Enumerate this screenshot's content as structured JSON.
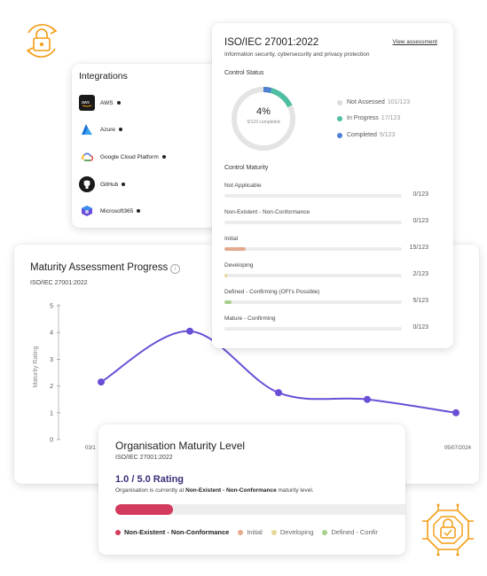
{
  "integrations": {
    "title": "Integrations",
    "items": [
      {
        "label": "AWS",
        "icon": "aws-logo-icon",
        "bg": "#1a1a1a"
      },
      {
        "label": "Azure",
        "icon": "azure-logo-icon",
        "bg": "#ffffff"
      },
      {
        "label": "Google Cloud Platform",
        "icon": "google-cloud-logo-icon",
        "bg": "#ffffff"
      },
      {
        "label": "GitHub",
        "icon": "github-logo-icon",
        "bg": "#1a1a1a"
      },
      {
        "label": "Microsoft365",
        "icon": "microsoft365-logo-icon",
        "bg": "#ffffff"
      }
    ]
  },
  "iso": {
    "title": "ISO/IEC 27001:2022",
    "link": "View assessment",
    "subtitle": "Information security, cybersecurity and privacy protection",
    "control_status": {
      "heading": "Control Status",
      "percent": "4%",
      "completed_text": "5/123 completed",
      "legend": [
        {
          "label": "Not Assessed",
          "count": "101/123",
          "color": "#dcdcdc"
        },
        {
          "label": "In Progress",
          "count": "17/123",
          "color": "#4fbfa2"
        },
        {
          "label": "Completed",
          "count": "5/123",
          "color": "#4d7fd3"
        }
      ]
    },
    "control_maturity": {
      "heading": "Control Maturity",
      "rows": [
        {
          "label": "Not Applicable",
          "count": "0/123",
          "fraction": 0,
          "color": "#cccccc"
        },
        {
          "label": "Non-Existent - Non-Conformance",
          "count": "0/123",
          "fraction": 0,
          "color": "#cccccc"
        },
        {
          "label": "Initial",
          "count": "15/123",
          "fraction": 0.122,
          "color": "#e3aa8e"
        },
        {
          "label": "Developing",
          "count": "2/123",
          "fraction": 0.016,
          "color": "#e8d79a"
        },
        {
          "label": "Defined - Confirming (OFI's Possible)",
          "count": "5/123",
          "fraction": 0.041,
          "color": "#a8d08d"
        },
        {
          "label": "Mature - Confirming",
          "count": "0/123",
          "fraction": 0,
          "color": "#cccccc"
        }
      ]
    }
  },
  "progress": {
    "title": "Maturity Assessment Progress",
    "subtitle": "ISO/IEC 27001:2022",
    "info_icon": "info-icon"
  },
  "chart_data": {
    "type": "line",
    "ylabel": "Maturity Rating",
    "ylim": [
      0,
      5
    ],
    "yticks": [
      "0",
      "1",
      "2",
      "3",
      "4",
      "5"
    ],
    "x_tick_labels": [
      "03/1",
      "05/07/2024"
    ],
    "series": [
      {
        "values": [
          2.15,
          4.05,
          1.75,
          1.5,
          1.0
        ],
        "color": "#6a4fd6"
      }
    ],
    "grid": false
  },
  "org": {
    "title": "Organisation Maturity Level",
    "subtitle": "ISO/IEC 27001:2022",
    "rating": "1.0 / 5.0 Rating",
    "desc_pre": "Organisation is currently at ",
    "desc_level": "Non-Existent - Non-Conformance",
    "desc_post": " maturity level.",
    "progress_fraction": 0.2,
    "legend": [
      {
        "label": "Non-Existent - Non-Conformance",
        "color": "#d23b5c"
      },
      {
        "label": "Initial",
        "color": "#e3aa8e"
      },
      {
        "label": "Developing",
        "color": "#e8d79a"
      },
      {
        "label": "Defined - Confir",
        "color": "#a8d08d"
      }
    ]
  },
  "colors": {
    "accent_orange": "#f39c12",
    "line": "#6a4fd6"
  }
}
